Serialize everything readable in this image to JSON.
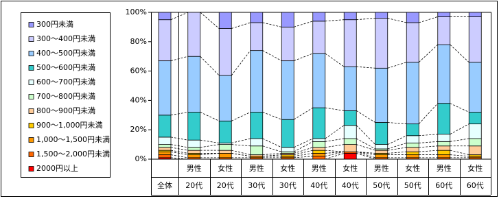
{
  "chart_data": {
    "type": "stacked-bar-100",
    "categories": [
      [
        "全体"
      ],
      [
        "男性",
        "20代"
      ],
      [
        "女性",
        "20代"
      ],
      [
        "男性",
        "30代"
      ],
      [
        "女性",
        "30代"
      ],
      [
        "男性",
        "40代"
      ],
      [
        "女性",
        "40代"
      ],
      [
        "男性",
        "50代"
      ],
      [
        "女性",
        "50代"
      ],
      [
        "男性",
        "60代"
      ],
      [
        "女性",
        "60代"
      ]
    ],
    "ylim": [
      0,
      100
    ],
    "yticks": [
      {
        "value": 0,
        "label": "0%"
      },
      {
        "value": 20,
        "label": "20%"
      },
      {
        "value": 40,
        "label": "40%"
      },
      {
        "value": 60,
        "label": "60%"
      },
      {
        "value": 80,
        "label": "80%"
      },
      {
        "value": 100,
        "label": "100%"
      }
    ],
    "series": [
      {
        "name": "300円未満",
        "color": "#9999ff",
        "values": [
          5,
          0,
          11,
          7,
          10,
          6,
          5,
          4,
          7,
          3,
          3
        ]
      },
      {
        "name": "300～400円未満",
        "color": "#ccccff",
        "values": [
          28,
          30,
          32,
          19,
          23,
          22,
          32,
          34,
          27,
          19,
          31
        ]
      },
      {
        "name": "400～500円未満",
        "color": "#99ccff",
        "values": [
          37,
          38,
          31,
          42,
          40,
          37,
          30,
          37,
          42,
          40,
          34
        ]
      },
      {
        "name": "500～600円未満",
        "color": "#33cccc",
        "values": [
          15,
          19,
          15,
          18,
          19,
          21,
          10,
          15,
          8,
          21,
          8
        ]
      },
      {
        "name": "600～700円未満",
        "color": "#e6ffff",
        "values": [
          5,
          5,
          1,
          5,
          3,
          2,
          9,
          3,
          5,
          5,
          10
        ]
      },
      {
        "name": "700～800円未満",
        "color": "#ccffcc",
        "values": [
          2,
          2,
          4,
          6,
          1,
          4,
          4,
          1,
          3,
          3,
          5
        ]
      },
      {
        "name": "800～900円未満",
        "color": "#ffcc99",
        "values": [
          2,
          2,
          2,
          1,
          1,
          2,
          5,
          2,
          3,
          3,
          6
        ]
      },
      {
        "name": "900～1,000円未満",
        "color": "#ffcc00",
        "values": [
          1,
          1,
          0,
          0,
          1,
          2,
          0,
          1,
          2,
          3,
          1
        ]
      },
      {
        "name": "1,000～1,500円未満",
        "color": "#ff9900",
        "values": [
          2,
          2,
          3,
          1,
          1,
          2,
          0,
          2,
          2,
          2,
          1
        ]
      },
      {
        "name": "1,500～2,000円未満",
        "color": "#ff6600",
        "values": [
          2,
          1,
          1,
          1,
          1,
          2,
          1,
          1,
          1,
          1,
          1
        ]
      },
      {
        "name": "2000円以上",
        "color": "#ff0000",
        "values": [
          1,
          0,
          0,
          0,
          0,
          0,
          4,
          0,
          0,
          0,
          0
        ]
      }
    ]
  }
}
